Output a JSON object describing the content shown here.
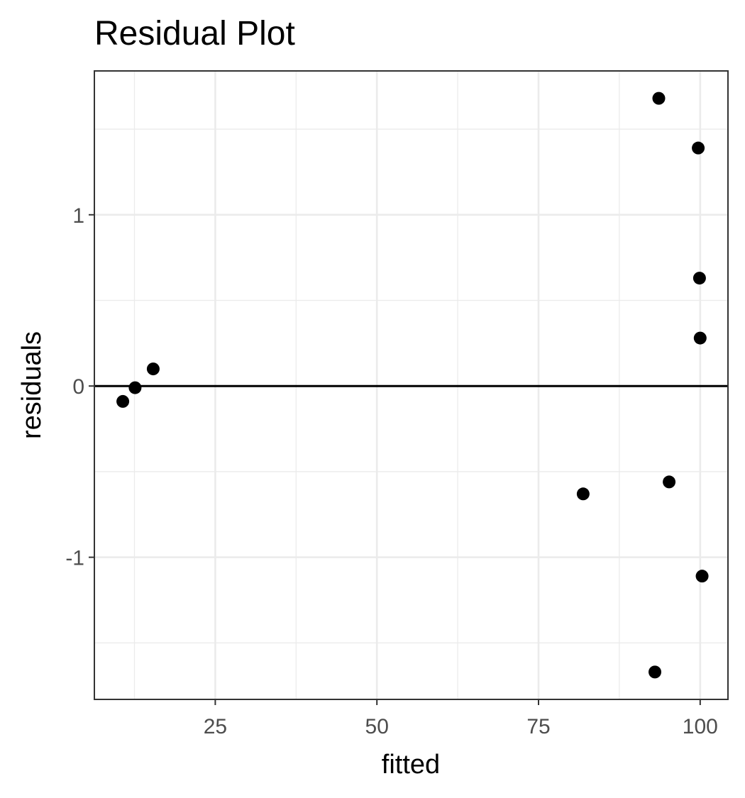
{
  "chart_data": {
    "type": "scatter",
    "title": "Residual Plot",
    "xlabel": "fitted",
    "ylabel": "residuals",
    "xlim": [
      6.3,
      104.3
    ],
    "ylim": [
      -1.83,
      1.84
    ],
    "x_ticks": [
      25,
      50,
      75,
      100
    ],
    "x_tick_labels": [
      "25",
      "50",
      "75",
      "100"
    ],
    "y_ticks": [
      -1,
      0,
      1
    ],
    "y_tick_labels": [
      "-1",
      "0",
      "1"
    ],
    "reference_line": {
      "y": 0
    },
    "grid": true,
    "legend": false,
    "point_color": "#000000",
    "points": [
      {
        "x": 10.7,
        "y": -0.09
      },
      {
        "x": 12.6,
        "y": -0.01
      },
      {
        "x": 15.4,
        "y": 0.1
      },
      {
        "x": 81.9,
        "y": -0.63
      },
      {
        "x": 93.0,
        "y": -1.67
      },
      {
        "x": 93.6,
        "y": 1.68
      },
      {
        "x": 95.2,
        "y": -0.56
      },
      {
        "x": 99.7,
        "y": 1.39
      },
      {
        "x": 99.9,
        "y": 0.63
      },
      {
        "x": 100.0,
        "y": 0.28
      },
      {
        "x": 100.3,
        "y": -1.11
      }
    ]
  }
}
